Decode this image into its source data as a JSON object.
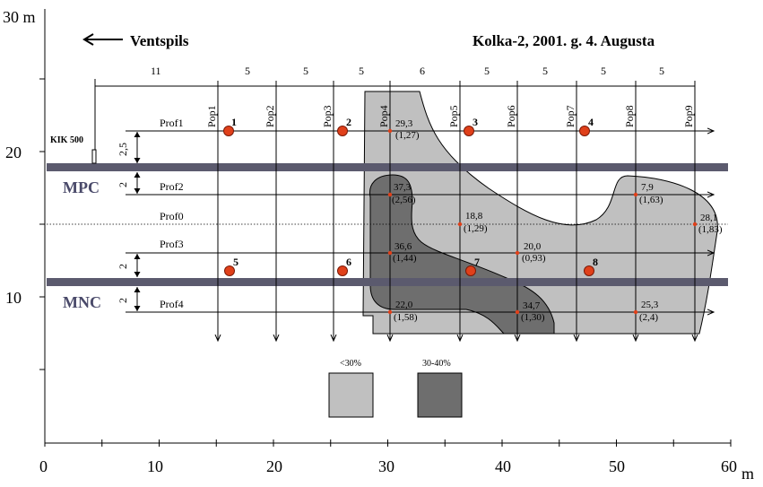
{
  "title": "Kolka-2, 2001. g. 4. Augusta",
  "direction_label": "Ventspils",
  "axes": {
    "x_ticks": [
      "0",
      "10",
      "20",
      "30",
      "40",
      "50",
      "60"
    ],
    "x_unit": "m",
    "y_ticks": [
      "10",
      "20"
    ],
    "y_top_label": "30 m"
  },
  "reference_point": "KIK 500",
  "zone_lines": [
    {
      "label": "MPC",
      "color": "#5b5a6e"
    },
    {
      "label": "MNC",
      "color": "#5b5a6e"
    }
  ],
  "profiles": [
    "Prof1",
    "Prof2",
    "Prof0",
    "Prof3",
    "Prof4"
  ],
  "profile_spacing_labels": [
    "2,5",
    "2",
    "2",
    "2"
  ],
  "pop_lines": [
    "Pop1",
    "Pop2",
    "Pop3",
    "Pop4",
    "Pop5",
    "Pop6",
    "Pop7",
    "Pop8",
    "Pop9"
  ],
  "pop_spacing_labels": [
    "11",
    "5",
    "5",
    "5",
    "6",
    "5",
    "5",
    "5",
    "5"
  ],
  "stations": [
    "1",
    "2",
    "3",
    "4",
    "5",
    "6",
    "7",
    "8"
  ],
  "measurements": [
    {
      "value": "29,3",
      "sub": "(1,27)"
    },
    {
      "value": "37,3",
      "sub": "(2,56)"
    },
    {
      "value": "18,8",
      "sub": "(1,29)"
    },
    {
      "value": "7,9",
      "sub": "(1,63)"
    },
    {
      "value": "28,1",
      "sub": "(1,83)"
    },
    {
      "value": "36,6",
      "sub": "(1,44)"
    },
    {
      "value": "20,0",
      "sub": "(0,93)"
    },
    {
      "value": "22,0",
      "sub": "(1,58)"
    },
    {
      "value": "34,7",
      "sub": "(1,30)"
    },
    {
      "value": "25,3",
      "sub": "(2,4)"
    }
  ],
  "legend": [
    {
      "label": "<30%",
      "color": "#c0c0c0"
    },
    {
      "label": "30-40%",
      "color": "#6e6e6e"
    }
  ],
  "colors": {
    "light_zone": "#c0c0c0",
    "dark_zone": "#6e6e6e",
    "station_fill": "#e0401a"
  }
}
